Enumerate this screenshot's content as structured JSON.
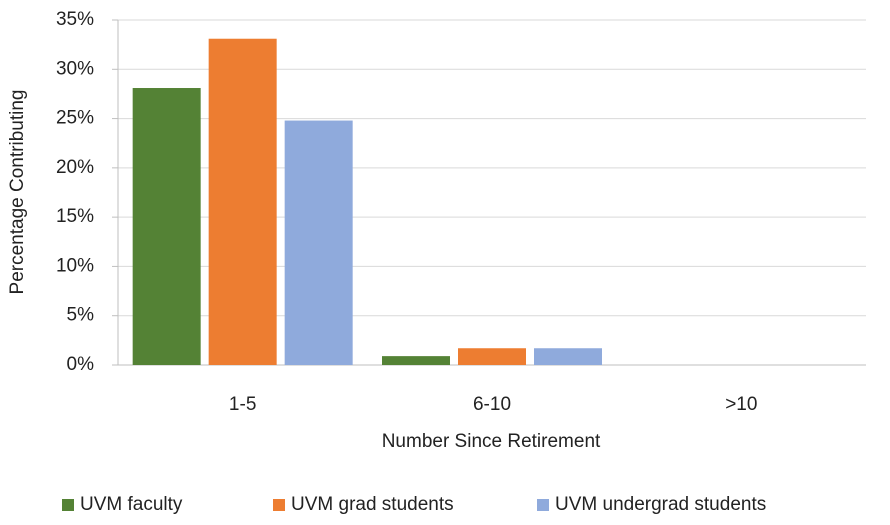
{
  "chart_data": {
    "type": "bar",
    "x_label": "Number Since Retirement",
    "y_label": "Percentage Contributing",
    "categories": [
      "1-5",
      "6-10",
      ">10"
    ],
    "series": [
      {
        "name": "UVM faculty",
        "color": "#548235",
        "values": [
          28.1,
          0.9,
          0
        ]
      },
      {
        "name": "UVM grad students",
        "color": "#ed7d31",
        "values": [
          33.1,
          1.7,
          0
        ]
      },
      {
        "name": "UVM undergrad students",
        "color": "#8faadc",
        "values": [
          24.8,
          1.7,
          0
        ]
      }
    ],
    "ylim": [
      0,
      35
    ],
    "yticks": [
      {
        "value": 0,
        "label": "0%"
      },
      {
        "value": 5,
        "label": "5%"
      },
      {
        "value": 10,
        "label": "10%"
      },
      {
        "value": 15,
        "label": "15%"
      },
      {
        "value": 20,
        "label": "20%"
      },
      {
        "value": 25,
        "label": "25%"
      },
      {
        "value": 30,
        "label": "30%"
      },
      {
        "value": 35,
        "label": "35%"
      }
    ],
    "grid": true,
    "legend": "bottom"
  }
}
